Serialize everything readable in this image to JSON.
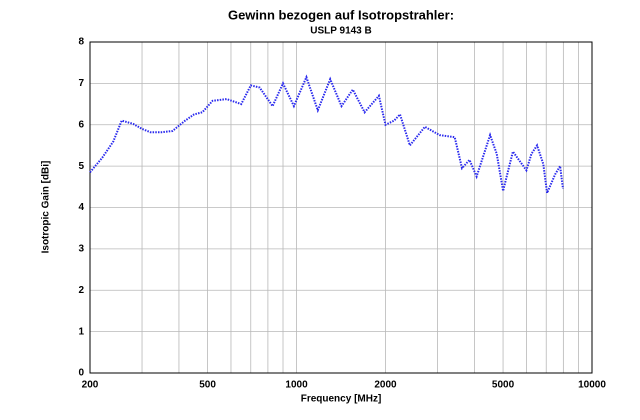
{
  "chart_data": {
    "type": "line",
    "title": "Gewinn bezogen auf Isotropstrahler:",
    "subtitle": "USLP 9143 B",
    "x_label": "Frequency [MHz]",
    "y_label": "Isotropic Gain [dBi]",
    "x_scale": "log",
    "xlim": [
      200,
      10000
    ],
    "xticks": [
      200,
      500,
      1000,
      2000,
      5000,
      10000
    ],
    "xticks_minor": [
      300,
      400,
      600,
      700,
      800,
      900,
      3000,
      4000,
      6000,
      7000,
      8000,
      9000
    ],
    "ylim": [
      0,
      8
    ],
    "yticks": [
      0,
      1,
      2,
      3,
      4,
      5,
      6,
      7,
      8
    ],
    "grid": true,
    "color": "#2a2aee",
    "x": [
      200,
      220,
      240,
      256,
      280,
      300,
      320,
      350,
      380,
      420,
      450,
      480,
      520,
      580,
      620,
      650,
      700,
      750,
      830,
      900,
      980,
      1080,
      1180,
      1300,
      1420,
      1550,
      1700,
      1900,
      2000,
      2140,
      2240,
      2420,
      2720,
      3050,
      3430,
      3630,
      3850,
      4070,
      4520,
      4760,
      5000,
      5400,
      6000,
      6240,
      6520,
      6840,
      7050,
      7500,
      7800,
      7980
    ],
    "values": [
      4.85,
      5.2,
      5.6,
      6.1,
      6.02,
      5.9,
      5.82,
      5.82,
      5.85,
      6.1,
      6.25,
      6.3,
      6.58,
      6.62,
      6.55,
      6.5,
      6.95,
      6.9,
      6.45,
      7.0,
      6.45,
      7.15,
      6.35,
      7.1,
      6.45,
      6.85,
      6.3,
      6.7,
      6.0,
      6.1,
      6.25,
      5.5,
      5.95,
      5.75,
      5.7,
      4.95,
      5.15,
      4.75,
      5.75,
      5.3,
      4.4,
      5.35,
      4.9,
      5.3,
      5.5,
      5.05,
      4.35,
      4.8,
      5.0,
      4.45
    ]
  }
}
